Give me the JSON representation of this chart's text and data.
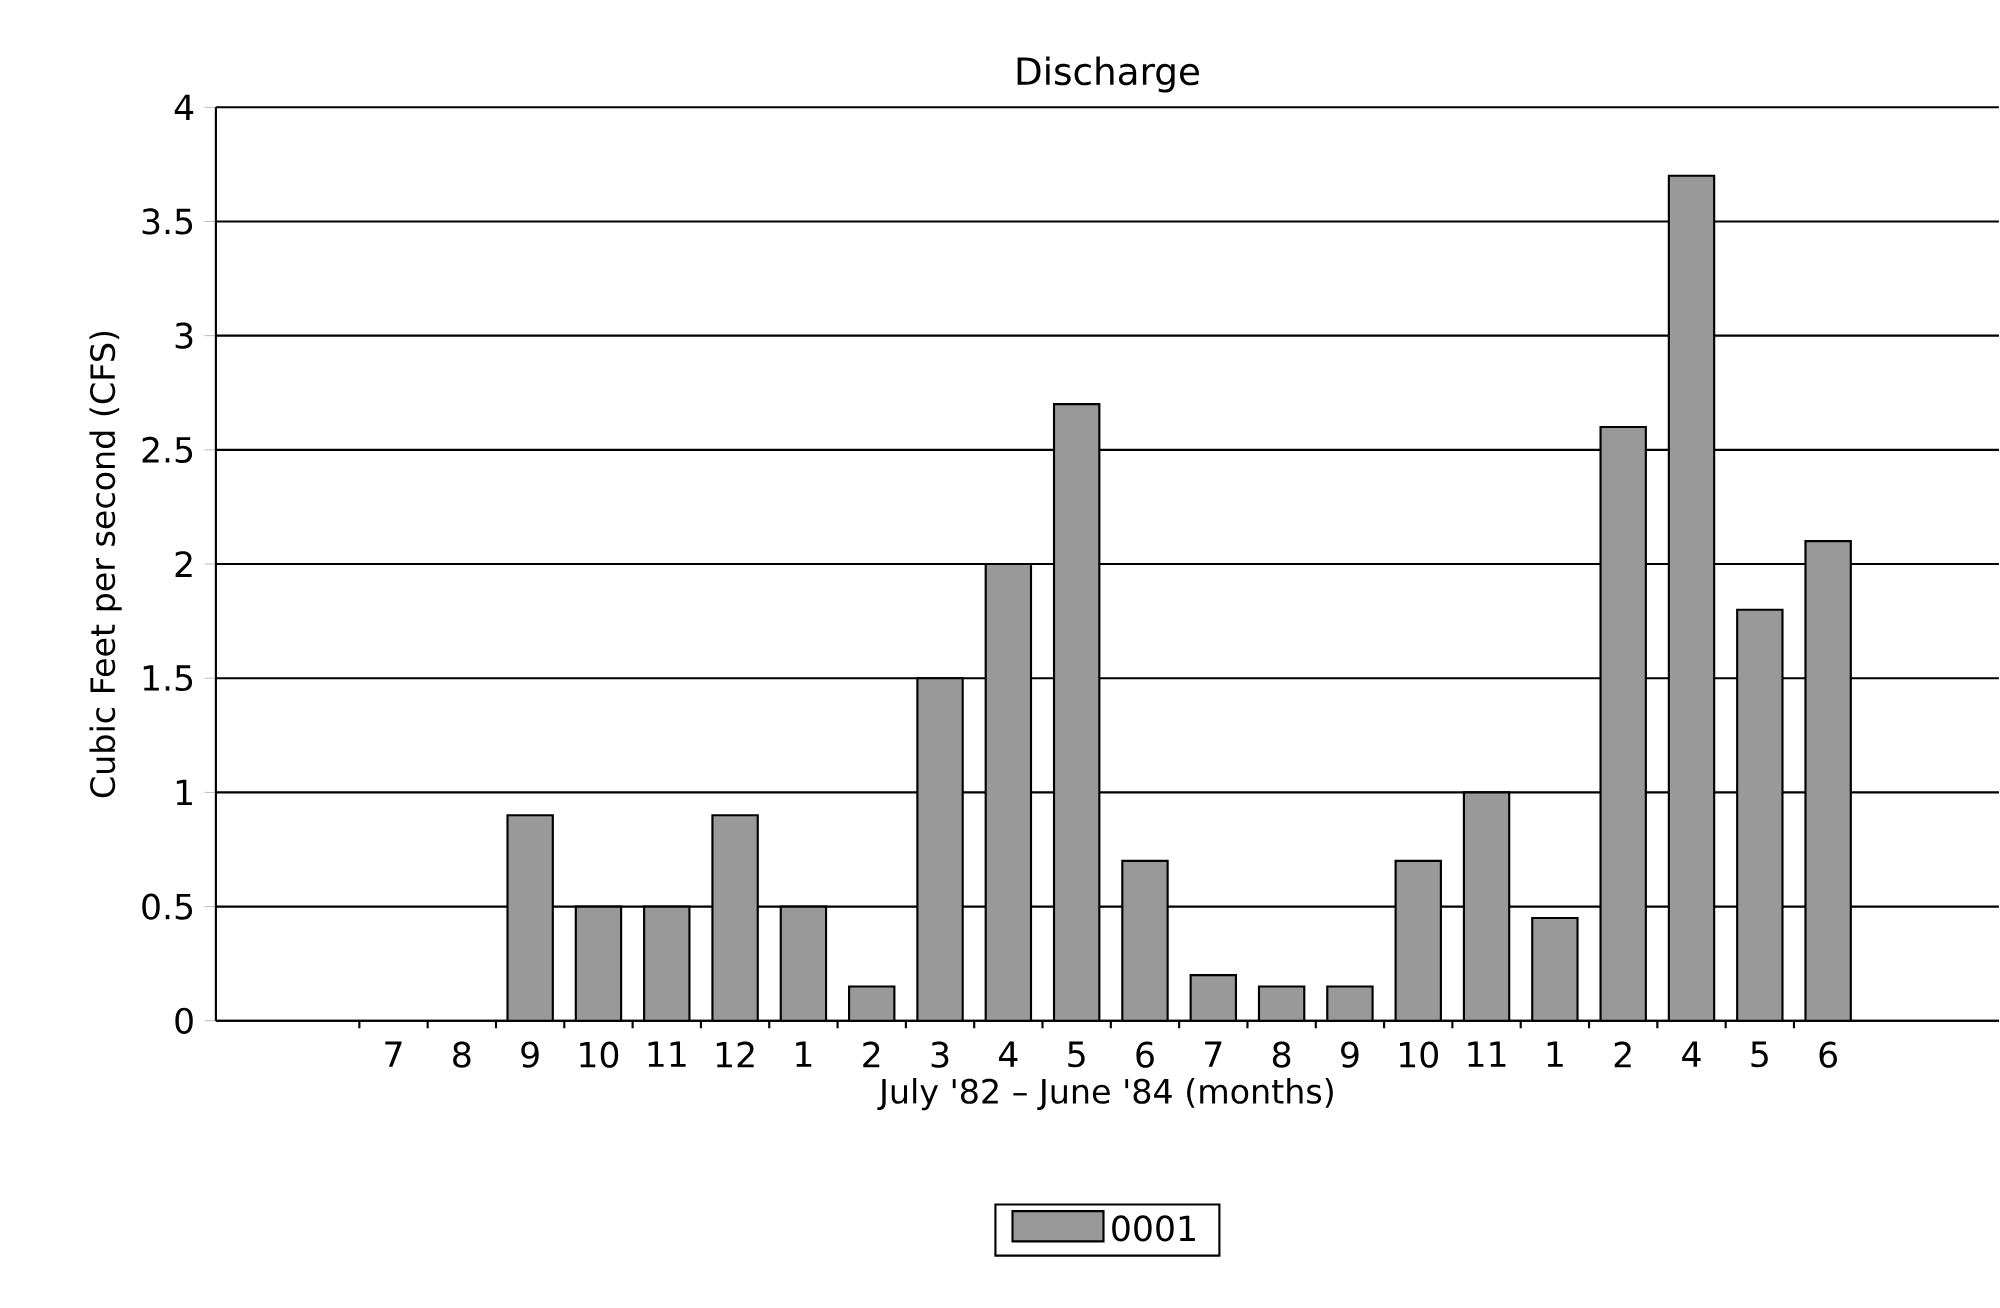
{
  "chart_data": {
    "type": "bar",
    "title": "Discharge",
    "xlabel": "July '82 – June '84 (months)",
    "ylabel": "Cubic Feet per second (CFS)",
    "categories": [
      "7",
      "8",
      "9",
      "10",
      "11",
      "12",
      "1",
      "2",
      "3",
      "4",
      "5",
      "6",
      "7",
      "8",
      "9",
      "10",
      "11",
      "1",
      "2",
      "4",
      "5",
      "6"
    ],
    "series": [
      {
        "name": "0001",
        "color": "#999999",
        "values": [
          null,
          null,
          0.9,
          0.5,
          0.5,
          0.9,
          0.5,
          0.15,
          1.5,
          2.0,
          2.7,
          0.7,
          0.2,
          0.15,
          0.15,
          0.7,
          1.0,
          0.45,
          2.6,
          3.7,
          1.8,
          2.1
        ]
      }
    ],
    "ylim": [
      0,
      4
    ],
    "yticks": [
      0,
      0.5,
      1,
      1.5,
      2,
      2.5,
      3,
      3.5,
      4
    ],
    "grid": "y",
    "legend": "bottom"
  }
}
